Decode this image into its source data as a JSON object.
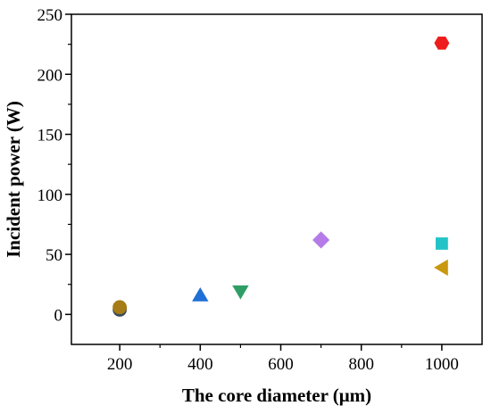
{
  "chart_data": {
    "type": "scatter",
    "xlabel": "The core diameter (μm)",
    "ylabel": "Incident power (W)",
    "xlim": [
      80,
      1100
    ],
    "ylim": [
      -25,
      250
    ],
    "xticks": [
      200,
      400,
      600,
      800,
      1000
    ],
    "yticks": [
      0,
      50,
      100,
      150,
      200,
      250
    ],
    "grid": false,
    "legend": "none",
    "points": [
      {
        "x": 200,
        "y": 4,
        "marker": "circle",
        "color": "#3a4a5c"
      },
      {
        "x": 200,
        "y": 6,
        "marker": "circle",
        "color": "#a67c16"
      },
      {
        "x": 400,
        "y": 16,
        "marker": "triangle-up",
        "color": "#1f6fd6"
      },
      {
        "x": 500,
        "y": 19,
        "marker": "triangle-down",
        "color": "#2e9e66"
      },
      {
        "x": 700,
        "y": 62,
        "marker": "diamond",
        "color": "#b57be6"
      },
      {
        "x": 1000,
        "y": 226,
        "marker": "hexagon",
        "color": "#ee1c1c"
      },
      {
        "x": 1000,
        "y": 59,
        "marker": "square",
        "color": "#22c4c8"
      },
      {
        "x": 1000,
        "y": 39,
        "marker": "triangle-left",
        "color": "#c9980f"
      }
    ]
  }
}
